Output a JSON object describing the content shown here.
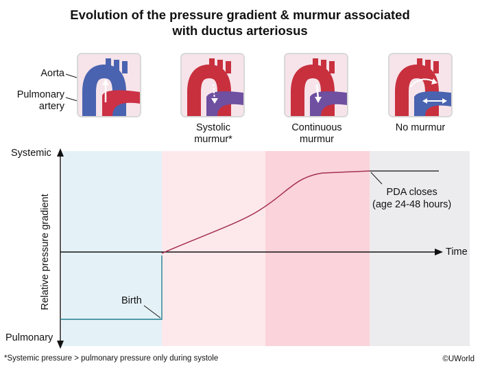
{
  "title_line1": "Evolution of the pressure gradient & murmur associated",
  "title_line2": "with ductus arteriosus",
  "labels": {
    "aorta": "Aorta",
    "pulmonary_line1": "Pulmonary",
    "pulmonary_line2": "artery"
  },
  "stages": [
    {
      "cap1": "",
      "cap2": ""
    },
    {
      "cap1": "Systolic",
      "cap2": "murmur*"
    },
    {
      "cap1": "Continuous",
      "cap2": "murmur"
    },
    {
      "cap1": "No murmur",
      "cap2": ""
    }
  ],
  "chart": {
    "y_top": "Systemic",
    "y_bottom": "Pulmonary",
    "y_axis_title": "Relative pressure gradient",
    "x_axis_label": "Time",
    "birth_label": "Birth",
    "pda_line1": "PDA closes",
    "pda_line2": "(age 24-48 hours)"
  },
  "chart_data": {
    "type": "line",
    "series": [
      {
        "values_note": "",
        "points": [
          [
            0,
            -0.85
          ],
          [
            1,
            -0.85
          ],
          [
            1,
            0
          ],
          [
            2,
            0.55
          ],
          [
            2.6,
            1.0
          ],
          [
            3,
            1.02
          ],
          [
            3.7,
            1.02
          ]
        ]
      }
    ],
    "regions": [
      "fetal",
      "systolic-murmur",
      "continuous-murmur",
      "closed"
    ],
    "region_colors": [
      "#e4f2f8",
      "#fde9ec",
      "#fbd3da",
      "#ececee"
    ]
  },
  "footnote": "*Systemic pressure > pulmonary pressure only during systole",
  "copyright": "©UWorld",
  "colors": {
    "line": "#a33050",
    "flat": "#1f7d8c",
    "aorta_red": "#c8303e",
    "aorta_blue": "#4a63b0"
  }
}
